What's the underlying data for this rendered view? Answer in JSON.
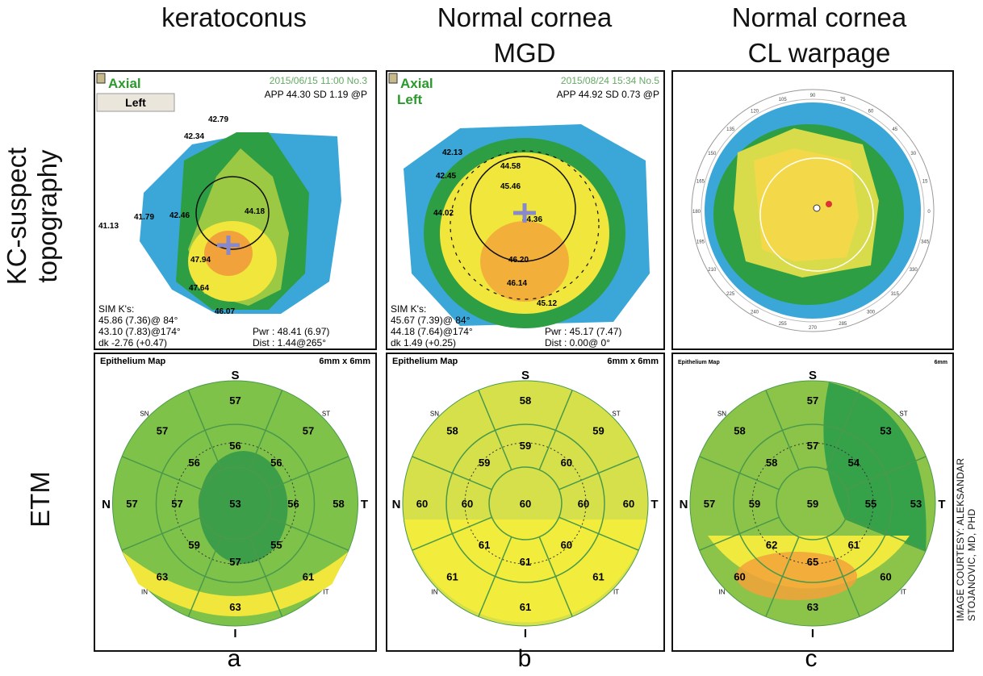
{
  "columns": [
    {
      "title": "keratoconus",
      "subtitle": "",
      "letter": "a"
    },
    {
      "title": "Normal cornea",
      "subtitle": "MGD",
      "letter": "b"
    },
    {
      "title": "Normal cornea",
      "subtitle": "CL warpage",
      "letter": "c"
    }
  ],
  "rows": {
    "top": "KC-suspect topography",
    "top_line1": "KC-suspect",
    "top_line2": "topography",
    "bottom": "ETM"
  },
  "courtesy": {
    "line1": "IMAGE COURTESY: ALEKSANDAR",
    "line2": "STOJANOVIC, MD, PHD"
  },
  "topo": [
    {
      "mode": "Axial",
      "eye": "Left",
      "date": "2015/06/15 11:00 No.3",
      "app": "APP 44.30 SD 1.19 @P",
      "sim_title": "SIM K's:",
      "sim1": "45.86 (7.36)@ 84°",
      "sim2": "43.10 (7.83)@174°",
      "sim3": "dk -2.76 (+0.47)",
      "pwr": "Pwr : 48.41 (6.97)",
      "dist": "Dist : 1.44@265°",
      "points": [
        "42.79",
        "42.34",
        "41.79",
        "42.46",
        "41.13",
        "44.18",
        "47.94",
        "47.64",
        "46.07"
      ]
    },
    {
      "mode": "Axial",
      "eye": "Left",
      "date": "2015/08/24 15:34 No.5",
      "app": "APP 44.92 SD 0.73 @P",
      "sim_title": "SIM K's:",
      "sim1": "45.67 (7.39)@ 84°",
      "sim2": "44.18 (7.64)@174°",
      "sim3": "dk 1.49 (+0.25)",
      "pwr": "Pwr : 45.17 (7.47)",
      "dist": "Dist : 0.00@ 0°",
      "points": [
        "42.13",
        "42.45",
        "44.58",
        "45.46",
        "44.02",
        "44.36",
        "46.20",
        "46.14",
        "45.12"
      ]
    },
    {
      "degrees": [
        "90",
        "105",
        "120",
        "135",
        "150",
        "165",
        "180",
        "195",
        "210",
        "225",
        "240",
        "255",
        "270",
        "285",
        "300",
        "315",
        "330",
        "345",
        "0",
        "15",
        "30",
        "45",
        "60",
        "75"
      ]
    }
  ],
  "etm": [
    {
      "header": "Epithelium Map",
      "size": "6mm x 6mm",
      "dirs": {
        "S": "S",
        "I": "I",
        "N": "N",
        "T": "T",
        "SN": "SN",
        "ST": "ST",
        "IN": "IN",
        "IT": "IT"
      },
      "center": "53",
      "inner": {
        "S": "56",
        "ST": "56",
        "T": "56",
        "IT": "55",
        "I": "57",
        "IN": "59",
        "N": "57",
        "SN": "56"
      },
      "outer": {
        "S": "57",
        "ST": "57",
        "T": "58",
        "IT": "61",
        "I": "63",
        "IN": "63",
        "N": "57",
        "SN": "57"
      }
    },
    {
      "header": "Epithelium Map",
      "size": "6mm x 6mm",
      "dirs": {
        "S": "S",
        "I": "I",
        "N": "N",
        "T": "T",
        "SN": "SN",
        "ST": "ST",
        "IN": "IN",
        "IT": "IT"
      },
      "center": "60",
      "inner": {
        "S": "59",
        "ST": "60",
        "T": "60",
        "IT": "60",
        "I": "61",
        "IN": "61",
        "N": "60",
        "SN": "59"
      },
      "outer": {
        "S": "58",
        "ST": "59",
        "T": "60",
        "IT": "61",
        "I": "61",
        "IN": "61",
        "N": "60",
        "SN": "58"
      }
    },
    {
      "header": "Epithelium Map",
      "size": "6mm",
      "dirs": {
        "S": "S",
        "I": "I",
        "N": "N",
        "T": "T",
        "SN": "SN",
        "ST": "ST",
        "IN": "IN",
        "IT": "IT"
      },
      "center": "59",
      "inner": {
        "S": "57",
        "ST": "54",
        "T": "55",
        "IT": "61",
        "I": "65",
        "IN": "62",
        "N": "59",
        "SN": "58"
      },
      "outer": {
        "S": "57",
        "ST": "53",
        "T": "53",
        "IT": "60",
        "I": "63",
        "IN": "60",
        "N": "57",
        "SN": "58"
      }
    }
  ],
  "colors": {
    "green": "#2e9e45",
    "yellow": "#f0e63c",
    "orange": "#f2a23a",
    "blue": "#3aa7d8",
    "lightgreen": "#9cc944"
  }
}
